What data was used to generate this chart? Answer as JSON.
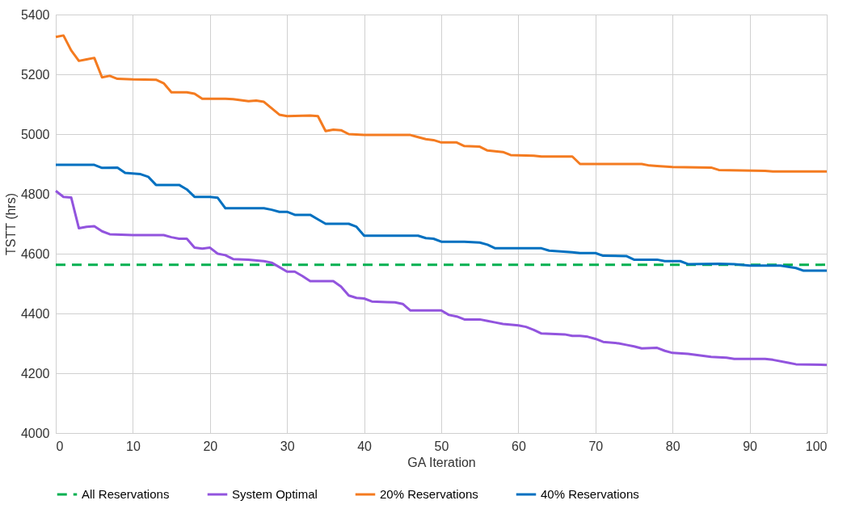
{
  "chart_data": {
    "type": "line",
    "xlabel": "GA Iteration",
    "ylabel": "TSTT (hrs)",
    "xlim": [
      0,
      100
    ],
    "xticks": [
      0,
      10,
      20,
      30,
      40,
      50,
      60,
      70,
      80,
      90,
      100
    ],
    "ylim": [
      4000,
      5400
    ],
    "yticks": [
      4000,
      4200,
      4400,
      4600,
      4800,
      5000,
      5200,
      5400
    ],
    "grid": true,
    "legend": "bottom",
    "marker": "none",
    "series": [
      {
        "name": "All Reservations",
        "color": "#00b050",
        "line_style": "dashed",
        "x": [
          0,
          100
        ],
        "values": [
          4563,
          4563
        ]
      },
      {
        "name": "System Optimal",
        "color": "#9254de",
        "line_style": "solid",
        "x": [
          0,
          1,
          2,
          3,
          4,
          5,
          6,
          7,
          10,
          14,
          15,
          16,
          17,
          18,
          19,
          20,
          21,
          22,
          23,
          25,
          27,
          28,
          29,
          30,
          31,
          32,
          33,
          36,
          37,
          38,
          39,
          40,
          41,
          43,
          44,
          45,
          46,
          50,
          51,
          52,
          53,
          55,
          56,
          57,
          58,
          60,
          61,
          62,
          63,
          66,
          67,
          68,
          69,
          70,
          71,
          73,
          74,
          75,
          76,
          78,
          79,
          80,
          82,
          84,
          85,
          87,
          88,
          92,
          93,
          95,
          96,
          100
        ],
        "values": [
          4810,
          4790,
          4788,
          4685,
          4690,
          4692,
          4675,
          4665,
          4662,
          4662,
          4655,
          4650,
          4650,
          4620,
          4617,
          4620,
          4600,
          4595,
          4582,
          4580,
          4575,
          4570,
          4555,
          4540,
          4540,
          4525,
          4508,
          4508,
          4490,
          4460,
          4452,
          4450,
          4440,
          4438,
          4437,
          4432,
          4410,
          4410,
          4395,
          4390,
          4380,
          4380,
          4375,
          4370,
          4365,
          4360,
          4355,
          4345,
          4333,
          4330,
          4325,
          4325,
          4322,
          4315,
          4305,
          4300,
          4295,
          4290,
          4283,
          4285,
          4275,
          4268,
          4265,
          4258,
          4255,
          4252,
          4248,
          4248,
          4245,
          4235,
          4230,
          4228
        ]
      },
      {
        "name": "20% Reservations",
        "color": "#f47b20",
        "line_style": "solid",
        "x": [
          0,
          1,
          2,
          3,
          4,
          5,
          6,
          7,
          8,
          10,
          13,
          14,
          15,
          17,
          18,
          19,
          22,
          23,
          25,
          26,
          27,
          29,
          30,
          33,
          34,
          35,
          36,
          37,
          38,
          40,
          46,
          47,
          48,
          49,
          50,
          52,
          53,
          55,
          56,
          58,
          59,
          62,
          63,
          67,
          68,
          76,
          77,
          78,
          80,
          85,
          86,
          92,
          93,
          100
        ],
        "values": [
          5325,
          5330,
          5280,
          5245,
          5250,
          5255,
          5190,
          5195,
          5185,
          5183,
          5182,
          5170,
          5140,
          5140,
          5135,
          5118,
          5118,
          5117,
          5110,
          5112,
          5108,
          5065,
          5060,
          5062,
          5060,
          5010,
          5015,
          5013,
          5000,
          4997,
          4997,
          4990,
          4983,
          4980,
          4972,
          4972,
          4960,
          4958,
          4945,
          4940,
          4930,
          4928,
          4925,
          4925,
          4900,
          4900,
          4895,
          4893,
          4890,
          4888,
          4880,
          4877,
          4875,
          4875
        ]
      },
      {
        "name": "40% Reservations",
        "color": "#0070c0",
        "line_style": "solid",
        "x": [
          0,
          5,
          6,
          8,
          9,
          11,
          12,
          13,
          16,
          17,
          18,
          20,
          21,
          22,
          27,
          28,
          29,
          30,
          31,
          33,
          34,
          35,
          38,
          39,
          40,
          47,
          48,
          49,
          50,
          53,
          55,
          56,
          57,
          63,
          64,
          67,
          68,
          70,
          71,
          74,
          75,
          78,
          79,
          81,
          82,
          86,
          88,
          90,
          94,
          96,
          97,
          100
        ],
        "values": [
          4897,
          4897,
          4887,
          4888,
          4870,
          4866,
          4857,
          4830,
          4830,
          4815,
          4790,
          4790,
          4787,
          4752,
          4752,
          4747,
          4740,
          4740,
          4730,
          4730,
          4715,
          4700,
          4700,
          4690,
          4660,
          4660,
          4652,
          4650,
          4640,
          4640,
          4637,
          4630,
          4618,
          4618,
          4610,
          4605,
          4602,
          4602,
          4593,
          4592,
          4580,
          4580,
          4575,
          4575,
          4565,
          4566,
          4565,
          4560,
          4560,
          4552,
          4543,
          4543
        ]
      }
    ]
  }
}
